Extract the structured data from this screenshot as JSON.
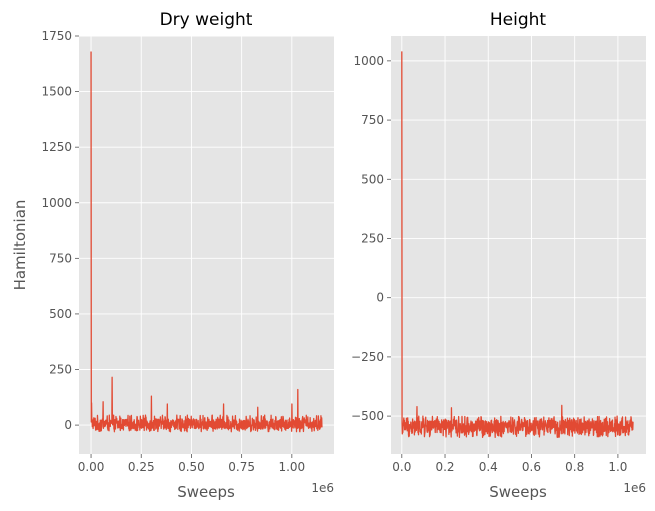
{
  "chart_data": [
    {
      "type": "line",
      "title": "Dry weight",
      "xlabel": "Sweeps",
      "ylabel": "Hamiltonian",
      "x_offset_label": "1e6",
      "xlim": [
        -0.06,
        1.21
      ],
      "ylim": [
        -130,
        1750
      ],
      "x_ticks": [
        0.0,
        0.25,
        0.5,
        0.75,
        1.0
      ],
      "x_tick_labels": [
        "0.00",
        "0.25",
        "0.50",
        "0.75",
        "1.00"
      ],
      "y_ticks": [
        0,
        250,
        500,
        750,
        1000,
        1250,
        1500,
        1750
      ],
      "y_tick_labels": [
        "0",
        "250",
        "500",
        "750",
        "1000",
        "1250",
        "1500",
        "1750"
      ],
      "grid": true,
      "series": [
        {
          "color": "#E24A33",
          "x_end": 1.15,
          "baseline": 0,
          "noise_low": -30,
          "noise_high": 45,
          "spikes": [
            {
              "x": 0.0,
              "y": 1680
            },
            {
              "x": 0.003,
              "y": 100
            },
            {
              "x": 0.06,
              "y": 105
            },
            {
              "x": 0.105,
              "y": 215
            },
            {
              "x": 0.3,
              "y": 130
            },
            {
              "x": 0.38,
              "y": 95
            },
            {
              "x": 0.66,
              "y": 95
            },
            {
              "x": 0.83,
              "y": 80
            },
            {
              "x": 1.0,
              "y": 95
            },
            {
              "x": 1.03,
              "y": 160
            }
          ]
        }
      ]
    },
    {
      "type": "line",
      "title": "Height",
      "xlabel": "Sweeps",
      "ylabel": "",
      "x_offset_label": "1e6",
      "xlim": [
        -0.05,
        1.13
      ],
      "ylim": [
        -660,
        1105
      ],
      "x_ticks": [
        0.0,
        0.2,
        0.4,
        0.6,
        0.8,
        1.0
      ],
      "x_tick_labels": [
        "0.0",
        "0.2",
        "0.4",
        "0.6",
        "0.8",
        "1.0"
      ],
      "y_ticks": [
        -500,
        -250,
        0,
        250,
        500,
        750,
        1000
      ],
      "y_tick_labels": [
        "−500",
        "−250",
        "0",
        "250",
        "500",
        "750",
        "1000"
      ],
      "grid": true,
      "series": [
        {
          "color": "#E24A33",
          "x_end": 1.07,
          "baseline": -545,
          "noise_low": -590,
          "noise_high": -500,
          "spikes": [
            {
              "x": 0.0,
              "y": 1040
            },
            {
              "x": 0.07,
              "y": -460
            },
            {
              "x": 0.23,
              "y": -465
            },
            {
              "x": 0.74,
              "y": -455
            }
          ]
        }
      ]
    }
  ]
}
